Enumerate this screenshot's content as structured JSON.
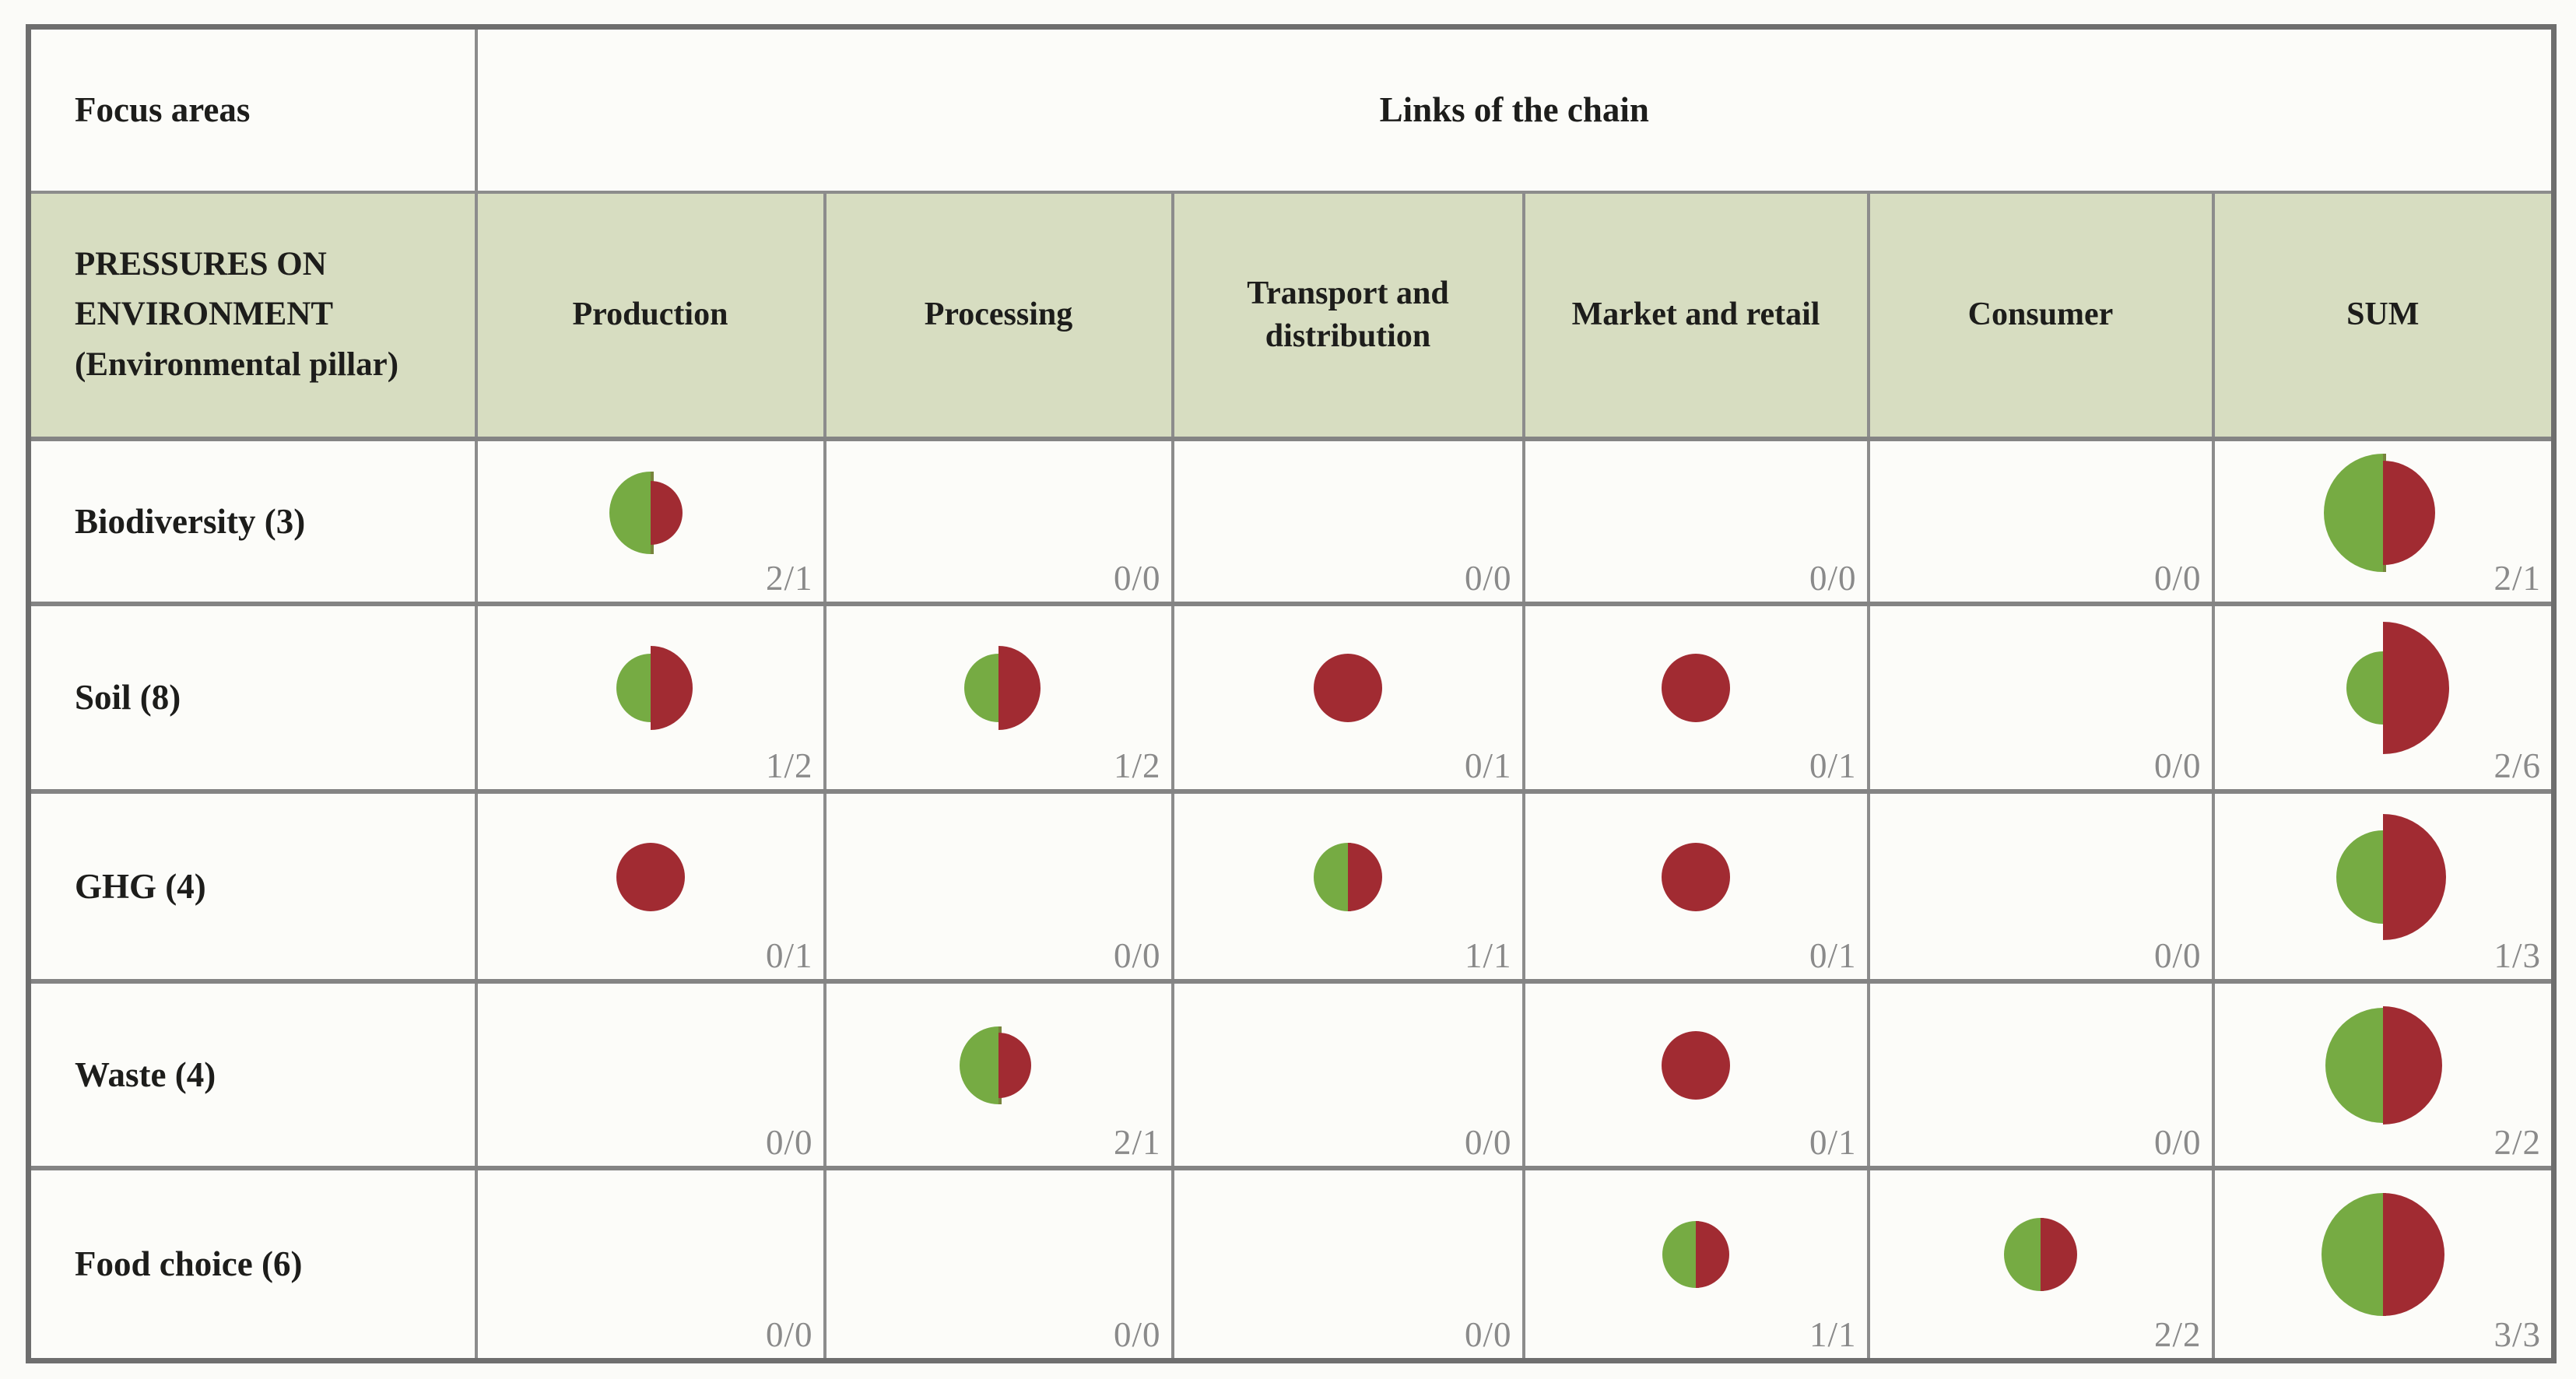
{
  "header": {
    "focus_label": "Focus areas",
    "links_label": "Links of the chain",
    "pressures_label": "PRESSURES ON ENVIRONMENT (Environmental pillar)"
  },
  "colors": {
    "green": "#76ab43",
    "red": "#a12b32",
    "seam": "#77843c",
    "header_bg": "#d7ddc1",
    "grid": "#8c8c8c",
    "outer_border": "#6e6e6e",
    "fraction_text": "#8a8a8a",
    "label_text": "#1d1d1b"
  },
  "chart_data": {
    "type": "table",
    "title": "Pressures on environment (Environmental pillar) across links of the chain",
    "columns": [
      "Production",
      "Processing",
      "Transport and distribution",
      "Market and retail",
      "Consumer",
      "SUM"
    ],
    "value_format": "green count / red count",
    "rows": [
      {
        "label": "Biodiversity (3)",
        "cells": [
          {
            "green": 2,
            "red": 1,
            "text": "2/1",
            "green_r": 53,
            "red_r": 41
          },
          {
            "green": 0,
            "red": 0,
            "text": "0/0"
          },
          {
            "green": 0,
            "red": 0,
            "text": "0/0"
          },
          {
            "green": 0,
            "red": 0,
            "text": "0/0"
          },
          {
            "green": 0,
            "red": 0,
            "text": "0/0"
          },
          {
            "green": 2,
            "red": 1,
            "text": "2/1",
            "green_r": 76,
            "red_r": 67
          }
        ]
      },
      {
        "label": "Soil (8)",
        "cells": [
          {
            "green": 1,
            "red": 2,
            "text": "1/2",
            "green_r": 44,
            "red_r": 54
          },
          {
            "green": 1,
            "red": 2,
            "text": "1/2",
            "green_r": 44,
            "red_r": 54
          },
          {
            "green": 0,
            "red": 1,
            "text": "0/1",
            "red_r": 44
          },
          {
            "green": 0,
            "red": 1,
            "text": "0/1",
            "red_r": 44
          },
          {
            "green": 0,
            "red": 0,
            "text": "0/0"
          },
          {
            "green": 2,
            "red": 6,
            "text": "2/6",
            "green_r": 47,
            "red_r": 85
          }
        ]
      },
      {
        "label": "GHG (4)",
        "cells": [
          {
            "green": 0,
            "red": 1,
            "text": "0/1",
            "red_r": 44
          },
          {
            "green": 0,
            "red": 0,
            "text": "0/0"
          },
          {
            "green": 1,
            "red": 1,
            "text": "1/1",
            "green_r": 44,
            "red_r": 44
          },
          {
            "green": 0,
            "red": 1,
            "text": "0/1",
            "red_r": 44
          },
          {
            "green": 0,
            "red": 0,
            "text": "0/0"
          },
          {
            "green": 1,
            "red": 3,
            "text": "1/3",
            "green_r": 60,
            "red_r": 81
          }
        ]
      },
      {
        "label": "Waste (4)",
        "cells": [
          {
            "green": 0,
            "red": 0,
            "text": "0/0"
          },
          {
            "green": 2,
            "red": 1,
            "text": "2/1",
            "green_r": 50,
            "red_r": 42
          },
          {
            "green": 0,
            "red": 0,
            "text": "0/0"
          },
          {
            "green": 0,
            "red": 1,
            "text": "0/1",
            "red_r": 44
          },
          {
            "green": 0,
            "red": 0,
            "text": "0/0"
          },
          {
            "green": 2,
            "red": 2,
            "text": "2/2",
            "green_r": 74,
            "red_r": 76
          }
        ]
      },
      {
        "label": "Food choice (6)",
        "cells": [
          {
            "green": 0,
            "red": 0,
            "text": "0/0"
          },
          {
            "green": 0,
            "red": 0,
            "text": "0/0"
          },
          {
            "green": 0,
            "red": 0,
            "text": "0/0"
          },
          {
            "green": 1,
            "red": 1,
            "text": "1/1",
            "green_r": 43,
            "red_r": 43
          },
          {
            "green": 2,
            "red": 2,
            "text": "2/2",
            "green_r": 47,
            "red_r": 47
          },
          {
            "green": 3,
            "red": 3,
            "text": "3/3",
            "green_r": 79,
            "red_r": 79
          }
        ]
      }
    ]
  }
}
